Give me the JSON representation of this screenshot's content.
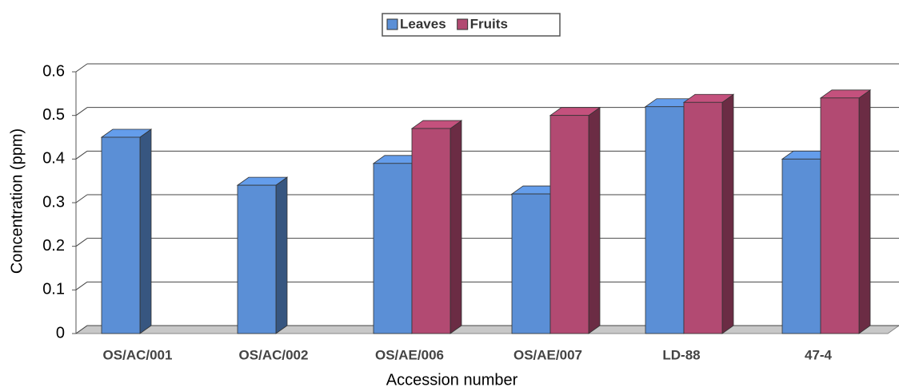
{
  "chart_data": {
    "type": "bar3d",
    "x_label": "Accession number",
    "y_label": "Concentration (ppm)",
    "categories": [
      "OS/AC/001",
      "OS/AC/002",
      "OS/AE/006",
      "OS/AE/007",
      "LD-88",
      "47-4"
    ],
    "series": [
      {
        "name": "Leaves",
        "color": "#5b8fd6",
        "values": [
          0.45,
          0.34,
          0.39,
          0.32,
          0.52,
          0.4
        ]
      },
      {
        "name": "Fruits",
        "color": "#b24a72",
        "values": [
          null,
          null,
          0.47,
          0.5,
          0.53,
          0.54
        ]
      }
    ],
    "ylim": [
      0,
      0.6
    ],
    "yticks": [
      0,
      0.1,
      0.2,
      0.3,
      0.4,
      0.5,
      0.6
    ],
    "grid": true,
    "legend": "top"
  }
}
